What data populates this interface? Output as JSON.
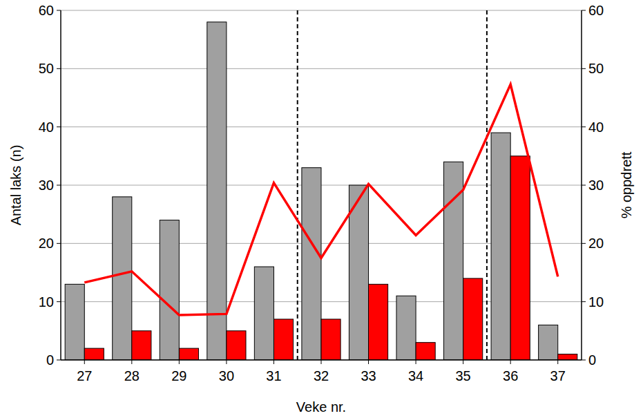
{
  "chart_data": {
    "type": "bar",
    "xlabel": "Veke nr.",
    "ylabel": "Antal laks (n)",
    "y2label": "% oppdrett",
    "x": [
      27,
      28,
      29,
      30,
      31,
      32,
      33,
      34,
      35,
      36,
      37
    ],
    "xlim": [
      26.5,
      37.5
    ],
    "xticks": [
      27,
      28,
      29,
      30,
      31,
      32,
      33,
      34,
      35,
      36,
      37
    ],
    "ylim": [
      0,
      60
    ],
    "yticks": [
      0,
      10,
      20,
      30,
      40,
      50,
      60
    ],
    "y2lim": [
      0,
      60
    ],
    "y2ticks": [
      0,
      10,
      20,
      30,
      40,
      50,
      60
    ],
    "grid": true,
    "vlines": [
      31.5,
      35.5
    ],
    "series": [
      {
        "type": "bar",
        "color": "#a0a0a0",
        "values": [
          13,
          28,
          24,
          58,
          16,
          33,
          30,
          11,
          34,
          39,
          6
        ]
      },
      {
        "type": "bar",
        "color": "#ff0000",
        "values": [
          2,
          5,
          2,
          5,
          7,
          7,
          13,
          3,
          14,
          35,
          1
        ]
      },
      {
        "type": "line",
        "color": "#ff0000",
        "axis": "y2",
        "values": [
          13.3,
          15.2,
          7.7,
          7.9,
          30.4,
          17.5,
          30.2,
          21.4,
          29.2,
          47.3,
          14.3
        ]
      }
    ]
  }
}
